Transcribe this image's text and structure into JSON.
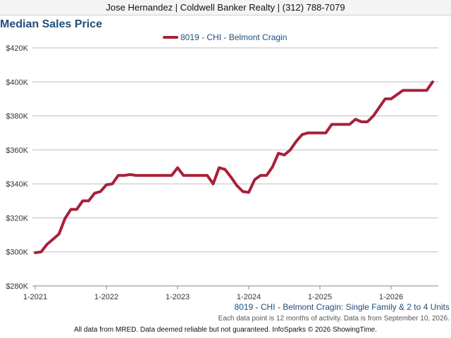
{
  "header": {
    "agent_line": "Jose Hernandez | Coldwell Banker Realty | (312) 788-7079"
  },
  "page_title": "Median Sales Price",
  "footer": {
    "series_caption": "8019 - CHI - Belmont Cragin: Single Family & 2 to 4 Units",
    "note": "Each data point is 12 months of activity. Data is from September 10, 2026.",
    "disclaimer": "All data from MRED. Data deemed reliable but not guaranteed. InfoSparks © 2026 ShowingTime."
  },
  "colors": {
    "series": "#a8203a",
    "grid": "#bdbdbd",
    "axis_text": "#333333",
    "caption": "#1f4e79"
  },
  "chart_data": {
    "type": "line",
    "title": "Median Sales Price",
    "xlabel": "",
    "ylabel": "",
    "ylim": [
      280000,
      420000
    ],
    "y_ticks": [
      280000,
      300000,
      320000,
      340000,
      360000,
      380000,
      400000,
      420000
    ],
    "y_tick_labels": [
      "$280K",
      "$300K",
      "$320K",
      "$340K",
      "$360K",
      "$380K",
      "$400K",
      "$420K"
    ],
    "x_tick_labels": [
      "1-2021",
      "1-2022",
      "1-2023",
      "1-2024",
      "1-2025",
      "1-2026"
    ],
    "x_range": [
      "2021-01",
      "2026-08"
    ],
    "grid": true,
    "legend_position": "top-center",
    "series": [
      {
        "name": "8019 - CHI - Belmont Cragin",
        "x": [
          "2021-01",
          "2021-02",
          "2021-03",
          "2021-04",
          "2021-05",
          "2021-06",
          "2021-07",
          "2021-08",
          "2021-09",
          "2021-10",
          "2021-11",
          "2021-12",
          "2022-01",
          "2022-02",
          "2022-03",
          "2022-04",
          "2022-05",
          "2022-06",
          "2022-07",
          "2022-08",
          "2022-09",
          "2022-10",
          "2022-11",
          "2022-12",
          "2023-01",
          "2023-02",
          "2023-03",
          "2023-04",
          "2023-05",
          "2023-06",
          "2023-07",
          "2023-08",
          "2023-09",
          "2023-10",
          "2023-11",
          "2023-12",
          "2024-01",
          "2024-02",
          "2024-03",
          "2024-04",
          "2024-05",
          "2024-06",
          "2024-07",
          "2024-08",
          "2024-09",
          "2024-10",
          "2024-11",
          "2024-12",
          "2025-01",
          "2025-02",
          "2025-03",
          "2025-04",
          "2025-05",
          "2025-06",
          "2025-07",
          "2025-08",
          "2025-09",
          "2025-10",
          "2025-11",
          "2025-12",
          "2026-01",
          "2026-02",
          "2026-03",
          "2026-04",
          "2026-05",
          "2026-06",
          "2026-07",
          "2026-08"
        ],
        "values": [
          299500,
          300000,
          304500,
          307500,
          310500,
          319500,
          325000,
          325000,
          330000,
          330000,
          334500,
          335500,
          339500,
          340000,
          345000,
          345000,
          345500,
          345000,
          345000,
          345000,
          345000,
          345000,
          345000,
          345000,
          349500,
          345000,
          345000,
          345000,
          345000,
          345000,
          340000,
          349500,
          348500,
          344000,
          339000,
          335500,
          335000,
          342500,
          345000,
          345000,
          350000,
          358000,
          357000,
          360000,
          365000,
          369000,
          370000,
          370000,
          370000,
          370000,
          375000,
          375000,
          375000,
          375000,
          378000,
          376500,
          376500,
          380000,
          385000,
          390000,
          390000,
          392500,
          395000,
          395000,
          395000,
          395000,
          395000,
          400000
        ]
      }
    ]
  }
}
